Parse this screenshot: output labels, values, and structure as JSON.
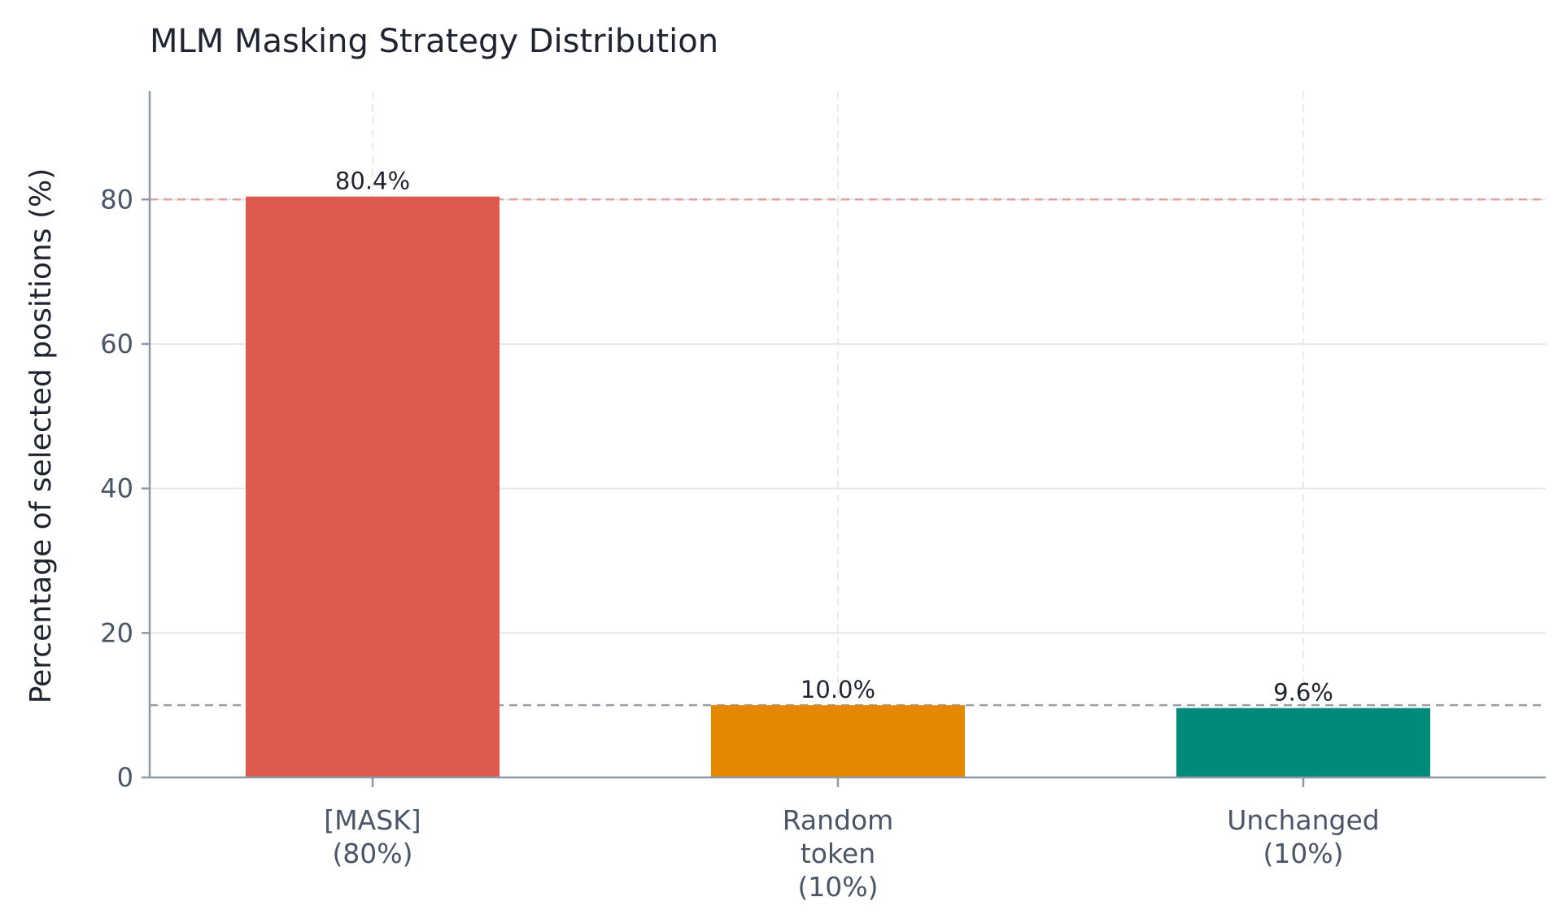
{
  "chart_data": {
    "type": "bar",
    "title": "MLM Masking Strategy Distribution",
    "ylabel": "Percentage of selected positions (%)",
    "xlabel": "",
    "categories": [
      [
        "[MASK]",
        "(80%)"
      ],
      [
        "Random",
        "token",
        "(10%)"
      ],
      [
        "Unchanged",
        "(10%)"
      ]
    ],
    "values": [
      80.4,
      10.0,
      9.6
    ],
    "value_labels": [
      "80.4%",
      "10.0%",
      "9.6%"
    ],
    "colors": [
      "#dd5a4f",
      "#e38800",
      "#008a7a"
    ],
    "ylim": [
      0,
      95
    ],
    "yticks": [
      0,
      20,
      40,
      60,
      80
    ],
    "reference_lines": [
      {
        "y": 80,
        "color": "#e3a19b",
        "style": "dashed"
      },
      {
        "y": 10,
        "color": "#9aa0a6",
        "style": "dashed"
      }
    ],
    "grid": true
  }
}
